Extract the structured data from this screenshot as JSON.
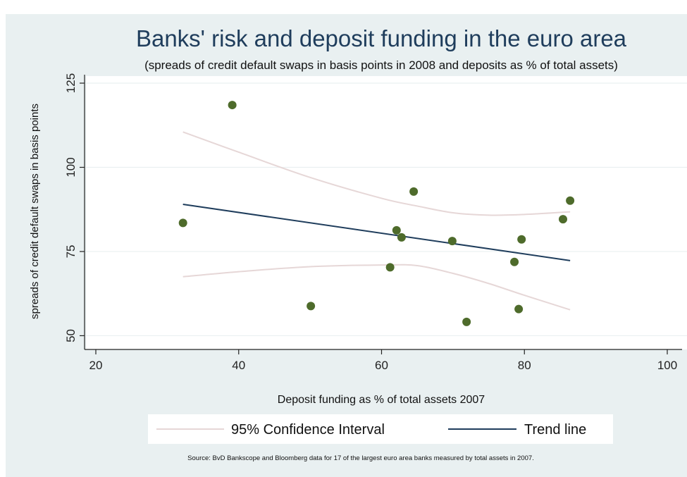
{
  "chart_data": {
    "type": "scatter",
    "title": "Banks' risk and deposit funding in the euro area",
    "subtitle": "(spreads of credit default swaps in basis points in 2008 and deposits as % of total assets)",
    "xlabel": "Deposit funding as % of total assets 2007",
    "ylabel": "spreads of credit default swaps in basis points",
    "xlim": [
      20,
      100
    ],
    "ylim": [
      48,
      125
    ],
    "x_ticks": [
      20,
      40,
      60,
      80,
      100
    ],
    "y_ticks": [
      50,
      75,
      100,
      125
    ],
    "grid": "horizontal",
    "legend_position": "bottom",
    "source": "Source: BvD Bankscope and Bloomberg data for 17 of the largest euro area banks measured by  total assets in 2007.",
    "points": [
      {
        "x": 32.2,
        "y": 83.5
      },
      {
        "x": 39.1,
        "y": 118.5
      },
      {
        "x": 50.1,
        "y": 58.8
      },
      {
        "x": 61.2,
        "y": 70.3
      },
      {
        "x": 62.1,
        "y": 81.3
      },
      {
        "x": 62.8,
        "y": 79.2
      },
      {
        "x": 64.5,
        "y": 92.8
      },
      {
        "x": 69.9,
        "y": 78.1
      },
      {
        "x": 71.9,
        "y": 54.1
      },
      {
        "x": 78.6,
        "y": 71.9
      },
      {
        "x": 79.2,
        "y": 57.9
      },
      {
        "x": 79.6,
        "y": 78.6
      },
      {
        "x": 85.4,
        "y": 84.6
      },
      {
        "x": 86.4,
        "y": 90.1
      }
    ],
    "trend_line": [
      {
        "x": 32.2,
        "y": 89.0
      },
      {
        "x": 86.4,
        "y": 72.3
      }
    ],
    "ci_upper": [
      {
        "x": 32.2,
        "y": 110.5
      },
      {
        "x": 40,
        "y": 104.5
      },
      {
        "x": 50,
        "y": 97.0
      },
      {
        "x": 60,
        "y": 90.8
      },
      {
        "x": 65,
        "y": 88.5
      },
      {
        "x": 70,
        "y": 86.5
      },
      {
        "x": 75,
        "y": 85.8
      },
      {
        "x": 80,
        "y": 86.0
      },
      {
        "x": 86.4,
        "y": 86.8
      }
    ],
    "ci_lower": [
      {
        "x": 32.2,
        "y": 67.5
      },
      {
        "x": 40,
        "y": 69.0
      },
      {
        "x": 50,
        "y": 70.5
      },
      {
        "x": 60,
        "y": 71.0
      },
      {
        "x": 65,
        "y": 70.8
      },
      {
        "x": 70,
        "y": 68.5
      },
      {
        "x": 75,
        "y": 65.5
      },
      {
        "x": 80,
        "y": 62.0
      },
      {
        "x": 86.4,
        "y": 57.7
      }
    ],
    "legend": [
      {
        "label": "95% Confidence Interval",
        "color": "#e6d7d7",
        "kind": "ci"
      },
      {
        "label": "Trend line",
        "color": "#1f3d5c",
        "kind": "trend"
      }
    ],
    "colors": {
      "background": "#e9f0f1",
      "plot_background": "#ffffff",
      "point": "#4e6b2b",
      "trend": "#1f3d5c",
      "ci": "#e6d7d7",
      "title": "#1f3d5c",
      "grid": "#eaf0f1"
    }
  }
}
